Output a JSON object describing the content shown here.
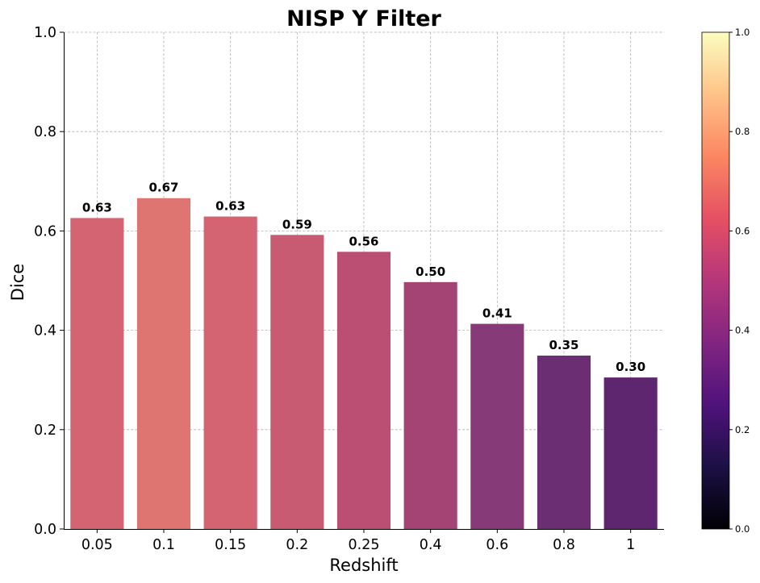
{
  "chart_data": {
    "type": "bar",
    "title": "NISP Y Filter",
    "xlabel": "Redshift",
    "ylabel": "Dice",
    "categories": [
      "0.05",
      "0.1",
      "0.15",
      "0.2",
      "0.25",
      "0.4",
      "0.6",
      "0.8",
      "1"
    ],
    "values": [
      0.626,
      0.666,
      0.629,
      0.592,
      0.558,
      0.497,
      0.413,
      0.349,
      0.305
    ],
    "value_labels": [
      "0.63",
      "0.67",
      "0.63",
      "0.59",
      "0.56",
      "0.50",
      "0.41",
      "0.35",
      "0.30"
    ],
    "bar_colors": [
      "#d46472",
      "#de7571",
      "#d46472",
      "#c85a72",
      "#bb4f73",
      "#a44474",
      "#873a78",
      "#6c2e72",
      "#5f2670"
    ],
    "ylim": [
      0,
      1
    ],
    "yticks": [
      "0.0",
      "0.2",
      "0.4",
      "0.6",
      "0.8",
      "1.0"
    ],
    "grid": true,
    "colorbar": {
      "colormap": "magma",
      "range": [
        0,
        1
      ],
      "ticks": [
        "0.0",
        "0.2",
        "0.4",
        "0.6",
        "0.8",
        "1.0"
      ]
    }
  }
}
